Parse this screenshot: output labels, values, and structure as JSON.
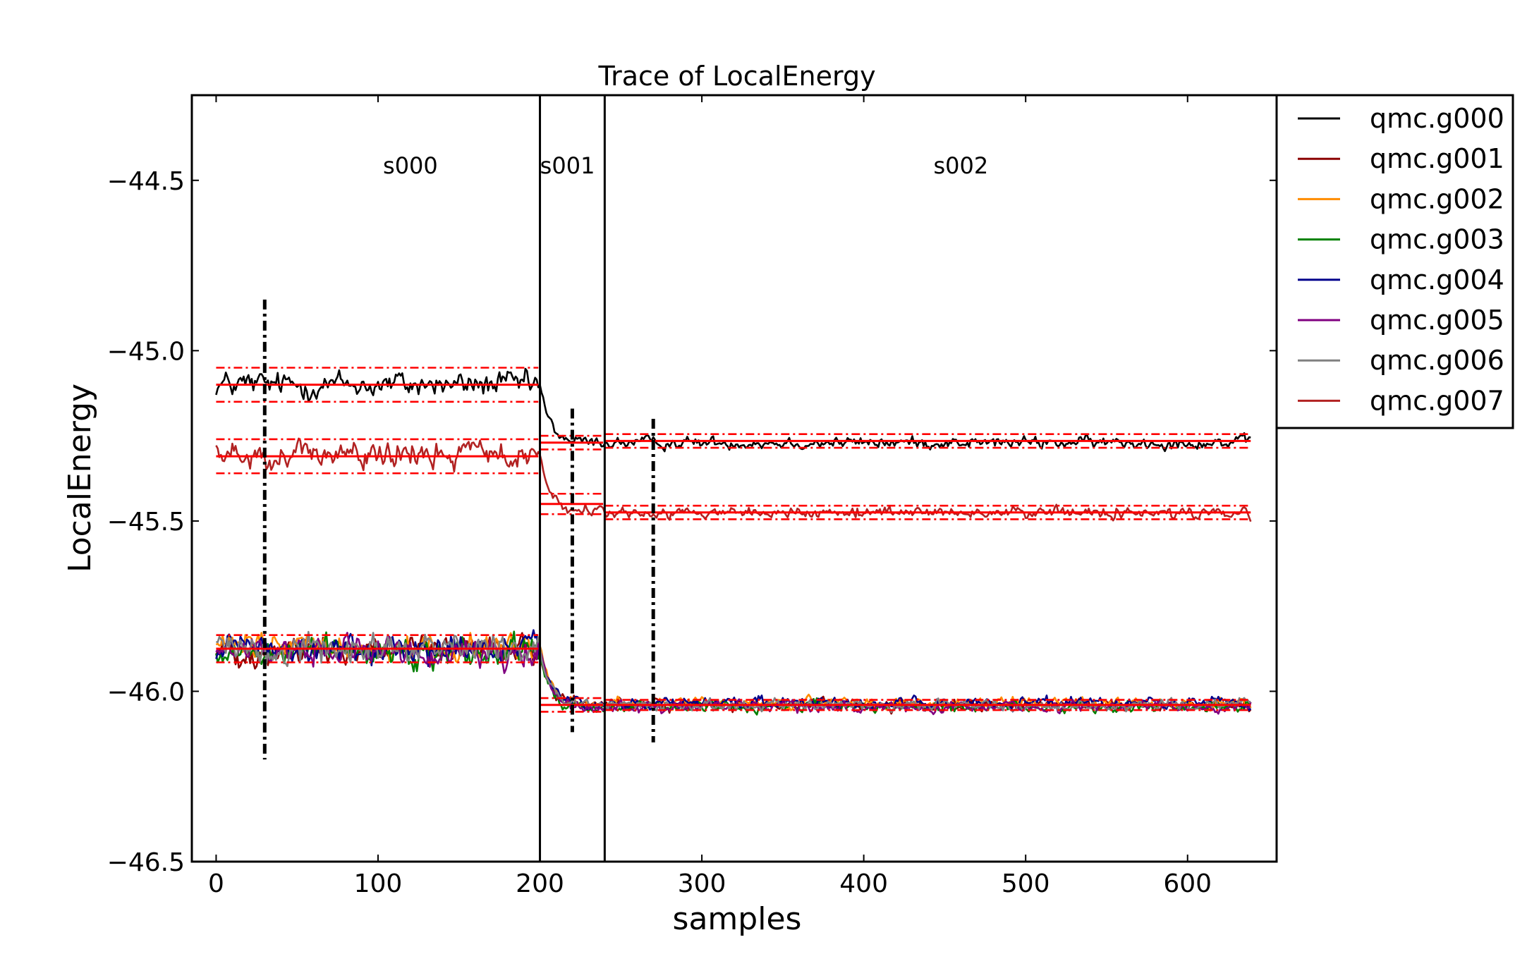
{
  "chart_data": {
    "type": "line",
    "title": "Trace of LocalEnergy",
    "xlabel": "samples",
    "ylabel": "LocalEnergy",
    "xlim": [
      -15,
      655
    ],
    "ylim": [
      -46.5,
      -44.25
    ],
    "xticks": [
      0,
      100,
      200,
      300,
      400,
      500,
      600
    ],
    "yticks": [
      -46.5,
      -46.0,
      -45.5,
      -45.0,
      -44.5
    ],
    "xtick_labels": [
      "0",
      "100",
      "200",
      "300",
      "400",
      "500",
      "600"
    ],
    "ytick_labels": [
      "−46.5",
      "−46.0",
      "−45.5",
      "−45.0",
      "−44.5"
    ],
    "grid": false,
    "legend_position": "outside-right",
    "section_boundaries": [
      200,
      240
    ],
    "section_labels": [
      {
        "text": "s000",
        "x": 120
      },
      {
        "text": "s001",
        "x": 217
      },
      {
        "text": "s002",
        "x": 460
      }
    ],
    "equilibration_markers": [
      30,
      220,
      270
    ],
    "series": [
      {
        "name": "qmc.g000",
        "color": "#000000",
        "segments": [
          {
            "x0": 0,
            "x1": 199,
            "mean": -45.1,
            "noise": 0.045
          },
          {
            "x0": 200,
            "x1": 239,
            "mean": -45.27,
            "start": -45.1,
            "noise": 0.02
          },
          {
            "x0": 240,
            "x1": 639,
            "mean": -45.27,
            "noise": 0.02
          }
        ]
      },
      {
        "name": "qmc.g001",
        "color": "#8b0000",
        "segments": [
          {
            "x0": 0,
            "x1": 199,
            "mean": -45.88,
            "noise": 0.05
          },
          {
            "x0": 200,
            "x1": 239,
            "mean": -46.04,
            "start": -45.88,
            "noise": 0.02
          },
          {
            "x0": 240,
            "x1": 639,
            "mean": -46.04,
            "noise": 0.02
          }
        ]
      },
      {
        "name": "qmc.g002",
        "color": "#ff8c00",
        "segments": [
          {
            "x0": 0,
            "x1": 199,
            "mean": -45.87,
            "noise": 0.05
          },
          {
            "x0": 200,
            "x1": 239,
            "mean": -46.04,
            "start": -45.87,
            "noise": 0.02
          },
          {
            "x0": 240,
            "x1": 639,
            "mean": -46.035,
            "noise": 0.02
          }
        ]
      },
      {
        "name": "qmc.g003",
        "color": "#008000",
        "segments": [
          {
            "x0": 0,
            "x1": 199,
            "mean": -45.88,
            "noise": 0.05
          },
          {
            "x0": 200,
            "x1": 239,
            "mean": -46.05,
            "start": -45.88,
            "noise": 0.02
          },
          {
            "x0": 240,
            "x1": 639,
            "mean": -46.045,
            "noise": 0.02
          }
        ]
      },
      {
        "name": "qmc.g004",
        "color": "#00008b",
        "segments": [
          {
            "x0": 0,
            "x1": 199,
            "mean": -45.88,
            "noise": 0.05
          },
          {
            "x0": 200,
            "x1": 239,
            "mean": -46.04,
            "start": -45.88,
            "noise": 0.02
          },
          {
            "x0": 240,
            "x1": 639,
            "mean": -46.035,
            "noise": 0.02
          }
        ]
      },
      {
        "name": "qmc.g005",
        "color": "#800080",
        "segments": [
          {
            "x0": 0,
            "x1": 199,
            "mean": -45.88,
            "noise": 0.05
          },
          {
            "x0": 200,
            "x1": 239,
            "mean": -46.05,
            "start": -45.88,
            "noise": 0.02
          },
          {
            "x0": 240,
            "x1": 639,
            "mean": -46.045,
            "noise": 0.02
          }
        ]
      },
      {
        "name": "qmc.g006",
        "color": "#808080",
        "segments": [
          {
            "x0": 0,
            "x1": 199,
            "mean": -45.87,
            "noise": 0.05
          },
          {
            "x0": 200,
            "x1": 239,
            "mean": -46.04,
            "start": -45.87,
            "noise": 0.02
          },
          {
            "x0": 240,
            "x1": 639,
            "mean": -46.04,
            "noise": 0.02
          }
        ]
      },
      {
        "name": "qmc.g007",
        "color": "#b22222",
        "segments": [
          {
            "x0": 0,
            "x1": 199,
            "mean": -45.31,
            "noise": 0.045
          },
          {
            "x0": 200,
            "x1": 239,
            "mean": -45.47,
            "start": -45.31,
            "noise": 0.02
          },
          {
            "x0": 240,
            "x1": 639,
            "mean": -45.475,
            "noise": 0.02
          }
        ]
      }
    ],
    "reference_lines": {
      "color": "#ff0000",
      "lines": [
        {
          "x0": 0,
          "x1": 199,
          "mean": -45.1,
          "error": 0.05
        },
        {
          "x0": 200,
          "x1": 239,
          "mean": -45.27,
          "error": 0.02
        },
        {
          "x0": 240,
          "x1": 639,
          "mean": -45.265,
          "error": 0.02
        },
        {
          "x0": 0,
          "x1": 199,
          "mean": -45.31,
          "error": 0.05
        },
        {
          "x0": 200,
          "x1": 239,
          "mean": -45.45,
          "error": 0.03
        },
        {
          "x0": 240,
          "x1": 639,
          "mean": -45.475,
          "error": 0.02
        },
        {
          "x0": 0,
          "x1": 199,
          "mean": -45.875,
          "error": 0.04
        },
        {
          "x0": 200,
          "x1": 239,
          "mean": -46.04,
          "error": 0.02
        },
        {
          "x0": 240,
          "x1": 639,
          "mean": -46.04,
          "error": 0.015
        }
      ]
    }
  }
}
